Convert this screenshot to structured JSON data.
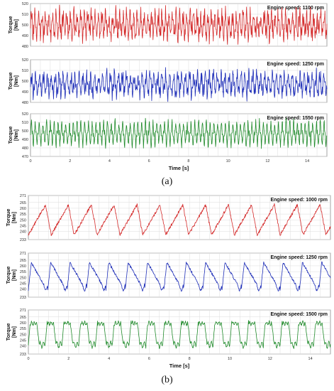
{
  "captions": {
    "a": "(a)",
    "b": "(b)"
  },
  "colors": {
    "red": "#d42a2a",
    "blue": "#1f2fb8",
    "green": "#1f8a2a",
    "grid": "#dcdcdc",
    "frame": "#8c8c8c"
  },
  "chart_data": [
    {
      "type": "line",
      "group": "a",
      "panel": 1,
      "annotation": "Engine speed: 1100 rpm",
      "ylabel": "Torque [Nm]",
      "ylim": [
        480,
        520
      ],
      "yticks": [
        480,
        490,
        500,
        510,
        520
      ],
      "xlim": [
        0,
        15
      ],
      "xticks": [
        0,
        2,
        4,
        6,
        8,
        10,
        12,
        14
      ],
      "show_xticks": false,
      "series": [
        {
          "color": "#d42a2a",
          "freq": 5.6,
          "mean": 500,
          "amp": 9,
          "noise": 6,
          "shape": "noisy",
          "seed": 3
        }
      ]
    },
    {
      "type": "line",
      "group": "a",
      "panel": 2,
      "annotation": "Engine speed: 1250 rpm",
      "ylabel": "Torque [Nm]",
      "ylim": [
        480,
        520
      ],
      "yticks": [
        480,
        490,
        500,
        510,
        520
      ],
      "xlim": [
        0,
        15
      ],
      "xticks": [
        0,
        2,
        4,
        6,
        8,
        10,
        12,
        14
      ],
      "show_xticks": false,
      "series": [
        {
          "color": "#1f2fb8",
          "freq": 5.0,
          "mean": 497,
          "amp": 8,
          "noise": 5,
          "shape": "noisy",
          "seed": 11
        }
      ]
    },
    {
      "type": "line",
      "group": "a",
      "panel": 3,
      "annotation": "Engine speed: 1550 rpm",
      "ylabel": "Torque [Nm]",
      "ylim": [
        470,
        520
      ],
      "yticks": [
        470,
        480,
        490,
        500,
        510,
        520
      ],
      "xlim": [
        0,
        15
      ],
      "xticks": [
        0,
        2,
        4,
        6,
        8,
        10,
        12,
        14
      ],
      "show_xticks": true,
      "xlabel": "Time [s]",
      "series": [
        {
          "color": "#1f8a2a",
          "freq": 5.2,
          "mean": 497,
          "amp": 14,
          "noise": 4,
          "shape": "spiky",
          "seed": 29
        }
      ]
    },
    {
      "type": "line",
      "group": "b",
      "panel": 1,
      "annotation": "Engine speed: 1000 rpm",
      "ylabel": "Torque [Nm]",
      "ylim": [
        233,
        271
      ],
      "yticks": [
        233,
        240,
        245,
        250,
        255,
        260,
        265,
        271
      ],
      "xlim": [
        0,
        15
      ],
      "xticks": [
        0,
        2,
        4,
        6,
        8,
        10,
        12,
        14
      ],
      "show_xticks": false,
      "series": [
        {
          "color": "#d42a2a",
          "freq": 0.88,
          "mean": 250,
          "amp": 13,
          "noise": 1.2,
          "shape": "sawtooth",
          "seed": 5
        }
      ]
    },
    {
      "type": "line",
      "group": "b",
      "panel": 2,
      "annotation": "Engine speed: 1250 rpm",
      "ylabel": "Torque [Nm]",
      "ylim": [
        233,
        271
      ],
      "yticks": [
        233,
        240,
        245,
        250,
        255,
        260,
        265,
        271
      ],
      "xlim": [
        0,
        15
      ],
      "xticks": [
        0,
        2,
        4,
        6,
        8,
        10,
        12,
        14
      ],
      "show_xticks": false,
      "series": [
        {
          "color": "#1f2fb8",
          "freq": 1.04,
          "mean": 251,
          "amp": 12,
          "noise": 1.0,
          "shape": "fastrise",
          "seed": 17
        }
      ]
    },
    {
      "type": "line",
      "group": "b",
      "panel": 3,
      "annotation": "Engine speed: 1500 rpm",
      "ylabel": "Torque [Nm]",
      "ylim": [
        233,
        271
      ],
      "yticks": [
        233,
        240,
        245,
        250,
        255,
        260,
        265,
        271
      ],
      "xlim": [
        0,
        15
      ],
      "xticks": [
        0,
        2,
        4,
        6,
        8,
        10,
        12,
        14
      ],
      "show_xticks": true,
      "xlabel": "Time [s]",
      "series": [
        {
          "color": "#1f8a2a",
          "freq": 1.2,
          "mean": 251,
          "amp": 10,
          "noise": 1.0,
          "shape": "plateau",
          "seed": 23
        }
      ]
    }
  ]
}
